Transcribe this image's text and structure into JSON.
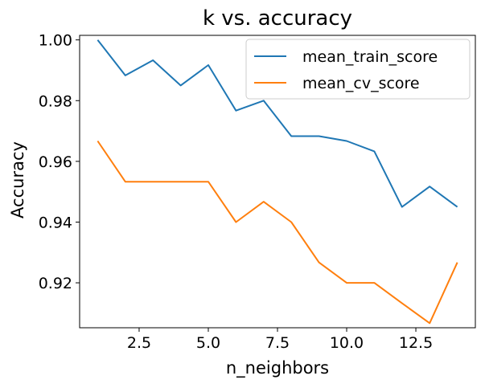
{
  "chart_data": {
    "type": "line",
    "title": "k vs. accuracy",
    "xlabel": "n_neighbors",
    "ylabel": "Accuracy",
    "xlim": [
      0.35,
      14.65
    ],
    "ylim": [
      0.9052,
      1.0015
    ],
    "xticks": [
      2.5,
      5.0,
      7.5,
      10.0,
      12.5
    ],
    "xtick_labels": [
      "2.5",
      "5.0",
      "7.5",
      "10.0",
      "12.5"
    ],
    "yticks": [
      0.92,
      0.94,
      0.96,
      0.98,
      1.0
    ],
    "ytick_labels": [
      "0.92",
      "0.94",
      "0.96",
      "0.98",
      "1.00"
    ],
    "grid": false,
    "legend_position": "top-right",
    "x": [
      1,
      2,
      3,
      4,
      5,
      6,
      7,
      8,
      9,
      10,
      11,
      12,
      13,
      14
    ],
    "series": [
      {
        "name": "mean_train_score",
        "color": "#1f77b4",
        "values": [
          1.0,
          0.9883,
          0.9933,
          0.985,
          0.9917,
          0.9767,
          0.98,
          0.9683,
          0.9683,
          0.9667,
          0.9633,
          0.945,
          0.9517,
          0.945
        ]
      },
      {
        "name": "mean_cv_score",
        "color": "#ff7f0e",
        "values": [
          0.9667,
          0.9533,
          0.9533,
          0.9533,
          0.9533,
          0.94,
          0.9467,
          0.94,
          0.9267,
          0.92,
          0.92,
          0.9133,
          0.9067,
          0.9267
        ]
      }
    ]
  }
}
